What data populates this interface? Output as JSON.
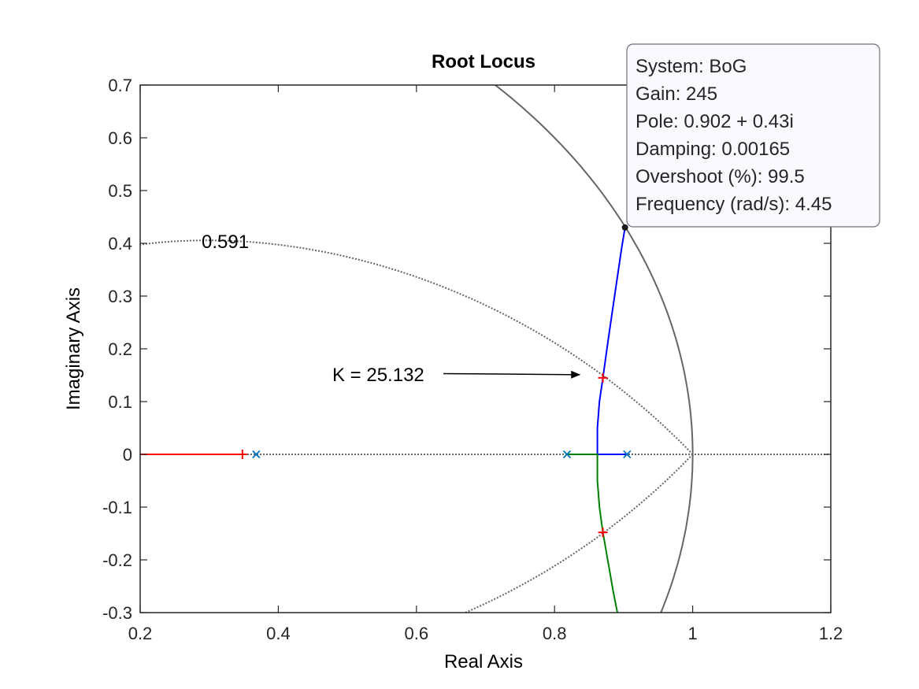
{
  "chart_data": {
    "type": "line",
    "title": "Root Locus",
    "xlabel": "Real Axis",
    "ylabel": "Imaginary Axis",
    "xlim": [
      0.2,
      1.2
    ],
    "ylim": [
      -0.3,
      0.7
    ],
    "xticks": [
      "0.2",
      "0.4",
      "0.6",
      "0.8",
      "1",
      "1.2"
    ],
    "yticks": [
      "-0.3",
      "-0.2",
      "-0.1",
      "0",
      "0.1",
      "0.2",
      "0.3",
      "0.4",
      "0.5",
      "0.6",
      "0.7"
    ],
    "grid": false,
    "series": [
      {
        "color": "#0000ff",
        "x": [
          0.905,
          0.862,
          0.862,
          0.865,
          0.87,
          0.878,
          0.888,
          0.897,
          0.902
        ],
        "y": [
          0.0,
          0.0,
          0.05,
          0.1,
          0.145,
          0.22,
          0.31,
          0.39,
          0.43
        ]
      },
      {
        "color": "#008000",
        "x": [
          0.818,
          0.862,
          0.862,
          0.865,
          0.87,
          0.877,
          0.885,
          0.891
        ],
        "y": [
          0.0,
          0.0,
          -0.05,
          -0.1,
          -0.148,
          -0.2,
          -0.26,
          -0.3
        ]
      },
      {
        "color": "#ff0000",
        "x": [
          0.2,
          0.348
        ],
        "y": [
          0.0,
          0.0
        ]
      }
    ],
    "poles": [
      {
        "x": 0.368,
        "y": 0.0
      },
      {
        "x": 0.818,
        "y": 0.0
      },
      {
        "x": 0.905,
        "y": 0.0
      }
    ],
    "gain_markers": [
      {
        "x": 0.348,
        "y": 0.0
      },
      {
        "x": 0.87,
        "y": 0.145
      },
      {
        "x": 0.87,
        "y": -0.148
      }
    ],
    "damping_label": "0.591",
    "annotation": {
      "text": "K = 25.132",
      "x": 0.53,
      "y": 0.153,
      "arrow_to": {
        "x": 0.865,
        "y": 0.148
      }
    },
    "datatip": {
      "point": {
        "x": 0.902,
        "y": 0.43
      },
      "lines": [
        "System: BoG",
        "Gain: 245",
        "Pole: 0.902 + 0.43i",
        "Damping: 0.00165",
        "Overshoot (%): 99.5",
        "Frequency (rad/s): 4.45"
      ]
    },
    "colors": {
      "blue": "#0000ff",
      "green": "#008000",
      "red": "#ff0000",
      "pole_marker": "#0072bd",
      "grid": "#666666"
    }
  }
}
